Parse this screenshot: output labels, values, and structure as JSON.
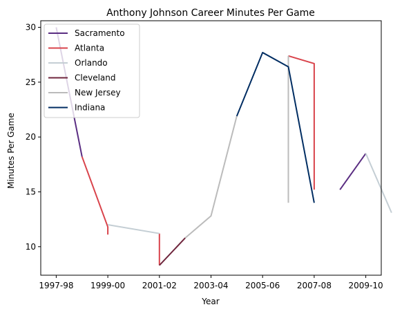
{
  "chart_data": {
    "type": "line",
    "title": "Anthony Johnson  Career Minutes Per Game",
    "xlabel": "Year",
    "ylabel": "Minutes Per Game",
    "xlim": [
      1996.4,
      2009.6
    ],
    "ylim": [
      7.4,
      30.6
    ],
    "x_ticks": [
      {
        "value": 1997,
        "label": "1997-98"
      },
      {
        "value": 1999,
        "label": "1999-00"
      },
      {
        "value": 2001,
        "label": "2001-02"
      },
      {
        "value": 2003,
        "label": "2003-04"
      },
      {
        "value": 2005,
        "label": "2005-06"
      },
      {
        "value": 2007,
        "label": "2007-08"
      },
      {
        "value": 2009,
        "label": "2009-10"
      }
    ],
    "y_ticks": [
      10,
      15,
      20,
      25,
      30
    ],
    "grid": false,
    "legend": "top-left",
    "series": [
      {
        "name": "Sacramento",
        "color": "#5a2d82",
        "segments": [
          [
            [
              1997,
              30.0
            ],
            [
              1998,
              18.2
            ]
          ],
          [
            [
              2008,
              15.2
            ],
            [
              2009,
              18.5
            ]
          ]
        ]
      },
      {
        "name": "Atlanta",
        "color": "#d9434b",
        "segments": [
          [
            [
              1998,
              18.2
            ],
            [
              1999,
              11.8
            ],
            [
              1999,
              11.1
            ]
          ],
          [
            [
              2001,
              11.2
            ],
            [
              2001,
              8.3
            ]
          ],
          [
            [
              2006,
              27.4
            ],
            [
              2007,
              26.7
            ],
            [
              2007,
              15.2
            ]
          ]
        ]
      },
      {
        "name": "Orlando",
        "color": "#c4ced4",
        "segments": [
          [
            [
              1999,
              12.0
            ],
            [
              2001,
              11.2
            ]
          ],
          [
            [
              2006,
              27.0
            ],
            [
              2006,
              14.2
            ]
          ],
          [
            [
              2009,
              18.5
            ],
            [
              2010,
              13.1
            ]
          ]
        ]
      },
      {
        "name": "Cleveland",
        "color": "#6f263d",
        "segments": [
          [
            [
              2001,
              8.3
            ],
            [
              2002,
              10.8
            ]
          ]
        ]
      },
      {
        "name": "New Jersey",
        "color": "#bbbbbb",
        "segments": [
          [
            [
              2002,
              10.8
            ],
            [
              2003,
              12.8
            ],
            [
              2004,
              21.9
            ]
          ],
          [
            [
              2006,
              27.4
            ],
            [
              2006,
              14.0
            ]
          ]
        ]
      },
      {
        "name": "Indiana",
        "color": "#002d62",
        "segments": [
          [
            [
              2004,
              21.9
            ],
            [
              2005,
              27.7
            ],
            [
              2006,
              26.4
            ],
            [
              2007,
              14.0
            ]
          ]
        ]
      }
    ]
  }
}
